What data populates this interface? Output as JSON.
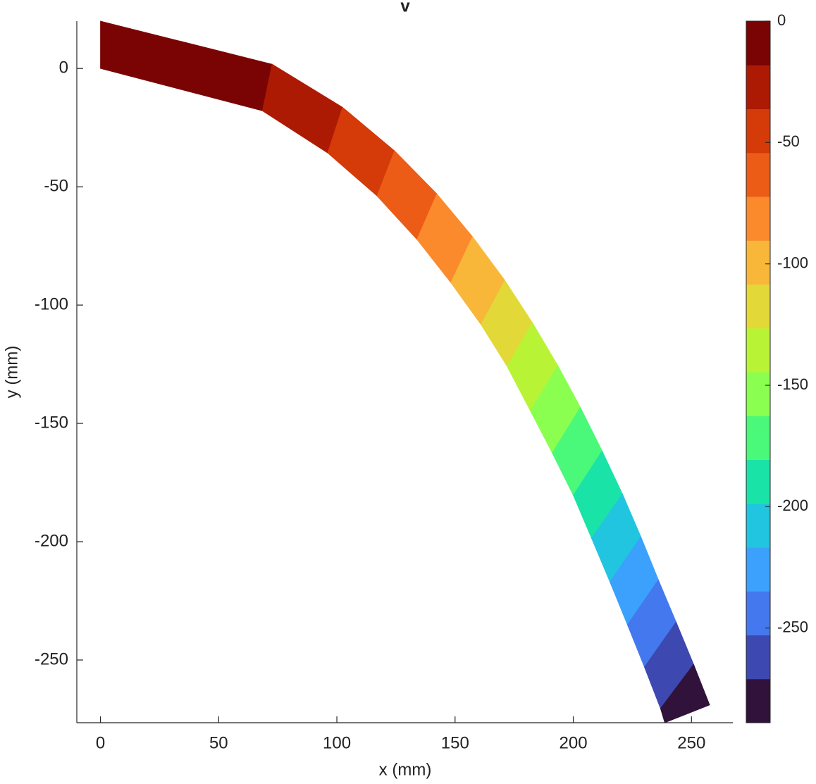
{
  "chart_data": {
    "type": "contour-patch",
    "title": "v",
    "x_label": "x (mm)",
    "y_label": "y (mm)",
    "xlim": [
      -10,
      267.5
    ],
    "ylim": [
      -276.5,
      20
    ],
    "xticks": [
      0,
      50,
      100,
      150,
      200,
      250
    ],
    "yticks": [
      -250,
      -200,
      -150,
      -100,
      -50,
      0
    ],
    "boundaries": [
      {
        "top": [
          0,
          20
        ],
        "bottom": [
          0,
          0
        ]
      },
      {
        "top": [
          72.6,
          1.8
        ],
        "bottom": [
          68.5,
          -17.9
        ]
      },
      {
        "top": [
          102.4,
          -16.4
        ],
        "bottom": [
          96.1,
          -35.7
        ]
      },
      {
        "top": [
          124.4,
          -34.8
        ],
        "bottom": [
          117,
          -53.9
        ]
      },
      {
        "top": [
          142.3,
          -53
        ],
        "bottom": [
          133.9,
          -72.3
        ]
      },
      {
        "top": [
          157.4,
          -71.1
        ],
        "bottom": [
          148.2,
          -90.5
        ]
      },
      {
        "top": [
          171.1,
          -89.6
        ],
        "bottom": [
          161,
          -108.3
        ]
      },
      {
        "top": [
          182.7,
          -107.4
        ],
        "bottom": [
          172,
          -125.9
        ]
      },
      {
        "top": [
          193.5,
          -125.6
        ],
        "bottom": [
          181.8,
          -144.6
        ]
      },
      {
        "top": [
          203,
          -143.2
        ],
        "bottom": [
          191.1,
          -162.5
        ]
      },
      {
        "top": [
          212.2,
          -161.6
        ],
        "bottom": [
          200,
          -180.4
        ]
      },
      {
        "top": [
          220.8,
          -179.8
        ],
        "bottom": [
          207.7,
          -198.5
        ]
      },
      {
        "top": [
          228.6,
          -197.9
        ],
        "bottom": [
          215.5,
          -217
        ]
      },
      {
        "top": [
          236,
          -216.1
        ],
        "bottom": [
          222.9,
          -235.1
        ]
      },
      {
        "top": [
          243.5,
          -233.9
        ],
        "bottom": [
          230.1,
          -253
        ]
      },
      {
        "top": [
          250.9,
          -251.8
        ],
        "bottom": [
          236.9,
          -270.5
        ]
      },
      {
        "top": [
          257.7,
          -269
        ],
        "bottom": [
          238.7,
          -276.5
        ]
      }
    ],
    "values": [
      -9,
      -27,
      -45,
      -63,
      -81,
      -99,
      -117,
      -135,
      -153,
      -171,
      -189,
      -207,
      -226,
      -244,
      -262,
      -280
    ],
    "clim": [
      -289,
      0
    ],
    "cticks": [
      -250,
      -200,
      -150,
      -100,
      -50,
      0
    ],
    "colormap": [
      "#30123b",
      "#3d48b0",
      "#4478ee",
      "#3ba1fc",
      "#22c5df",
      "#1ae3a8",
      "#4af979",
      "#8bff50",
      "#b8f435",
      "#e2d939",
      "#f9b73a",
      "#fb8a2c",
      "#ec5c16",
      "#d53a09",
      "#ad1a03",
      "#7a0403"
    ]
  }
}
